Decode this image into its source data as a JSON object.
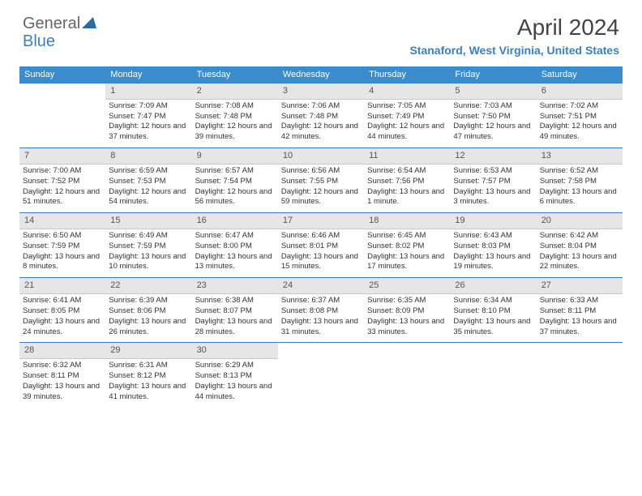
{
  "logo": {
    "part1": "General",
    "part2": "Blue"
  },
  "title": "April 2024",
  "subtitle": "Stanaford, West Virginia, United States",
  "colors": {
    "header_bg": "#3a8ccc",
    "accent": "#3a7fc4",
    "daynum_bg": "#e6e6e6",
    "text": "#333"
  },
  "weekdays": [
    "Sunday",
    "Monday",
    "Tuesday",
    "Wednesday",
    "Thursday",
    "Friday",
    "Saturday"
  ],
  "weeks": [
    {
      "days": [
        {
          "num": "",
          "sunrise": "",
          "sunset": "",
          "daylight": ""
        },
        {
          "num": "1",
          "sunrise": "Sunrise: 7:09 AM",
          "sunset": "Sunset: 7:47 PM",
          "daylight": "Daylight: 12 hours and 37 minutes."
        },
        {
          "num": "2",
          "sunrise": "Sunrise: 7:08 AM",
          "sunset": "Sunset: 7:48 PM",
          "daylight": "Daylight: 12 hours and 39 minutes."
        },
        {
          "num": "3",
          "sunrise": "Sunrise: 7:06 AM",
          "sunset": "Sunset: 7:48 PM",
          "daylight": "Daylight: 12 hours and 42 minutes."
        },
        {
          "num": "4",
          "sunrise": "Sunrise: 7:05 AM",
          "sunset": "Sunset: 7:49 PM",
          "daylight": "Daylight: 12 hours and 44 minutes."
        },
        {
          "num": "5",
          "sunrise": "Sunrise: 7:03 AM",
          "sunset": "Sunset: 7:50 PM",
          "daylight": "Daylight: 12 hours and 47 minutes."
        },
        {
          "num": "6",
          "sunrise": "Sunrise: 7:02 AM",
          "sunset": "Sunset: 7:51 PM",
          "daylight": "Daylight: 12 hours and 49 minutes."
        }
      ]
    },
    {
      "days": [
        {
          "num": "7",
          "sunrise": "Sunrise: 7:00 AM",
          "sunset": "Sunset: 7:52 PM",
          "daylight": "Daylight: 12 hours and 51 minutes."
        },
        {
          "num": "8",
          "sunrise": "Sunrise: 6:59 AM",
          "sunset": "Sunset: 7:53 PM",
          "daylight": "Daylight: 12 hours and 54 minutes."
        },
        {
          "num": "9",
          "sunrise": "Sunrise: 6:57 AM",
          "sunset": "Sunset: 7:54 PM",
          "daylight": "Daylight: 12 hours and 56 minutes."
        },
        {
          "num": "10",
          "sunrise": "Sunrise: 6:56 AM",
          "sunset": "Sunset: 7:55 PM",
          "daylight": "Daylight: 12 hours and 59 minutes."
        },
        {
          "num": "11",
          "sunrise": "Sunrise: 6:54 AM",
          "sunset": "Sunset: 7:56 PM",
          "daylight": "Daylight: 13 hours and 1 minute."
        },
        {
          "num": "12",
          "sunrise": "Sunrise: 6:53 AM",
          "sunset": "Sunset: 7:57 PM",
          "daylight": "Daylight: 13 hours and 3 minutes."
        },
        {
          "num": "13",
          "sunrise": "Sunrise: 6:52 AM",
          "sunset": "Sunset: 7:58 PM",
          "daylight": "Daylight: 13 hours and 6 minutes."
        }
      ]
    },
    {
      "days": [
        {
          "num": "14",
          "sunrise": "Sunrise: 6:50 AM",
          "sunset": "Sunset: 7:59 PM",
          "daylight": "Daylight: 13 hours and 8 minutes."
        },
        {
          "num": "15",
          "sunrise": "Sunrise: 6:49 AM",
          "sunset": "Sunset: 7:59 PM",
          "daylight": "Daylight: 13 hours and 10 minutes."
        },
        {
          "num": "16",
          "sunrise": "Sunrise: 6:47 AM",
          "sunset": "Sunset: 8:00 PM",
          "daylight": "Daylight: 13 hours and 13 minutes."
        },
        {
          "num": "17",
          "sunrise": "Sunrise: 6:46 AM",
          "sunset": "Sunset: 8:01 PM",
          "daylight": "Daylight: 13 hours and 15 minutes."
        },
        {
          "num": "18",
          "sunrise": "Sunrise: 6:45 AM",
          "sunset": "Sunset: 8:02 PM",
          "daylight": "Daylight: 13 hours and 17 minutes."
        },
        {
          "num": "19",
          "sunrise": "Sunrise: 6:43 AM",
          "sunset": "Sunset: 8:03 PM",
          "daylight": "Daylight: 13 hours and 19 minutes."
        },
        {
          "num": "20",
          "sunrise": "Sunrise: 6:42 AM",
          "sunset": "Sunset: 8:04 PM",
          "daylight": "Daylight: 13 hours and 22 minutes."
        }
      ]
    },
    {
      "days": [
        {
          "num": "21",
          "sunrise": "Sunrise: 6:41 AM",
          "sunset": "Sunset: 8:05 PM",
          "daylight": "Daylight: 13 hours and 24 minutes."
        },
        {
          "num": "22",
          "sunrise": "Sunrise: 6:39 AM",
          "sunset": "Sunset: 8:06 PM",
          "daylight": "Daylight: 13 hours and 26 minutes."
        },
        {
          "num": "23",
          "sunrise": "Sunrise: 6:38 AM",
          "sunset": "Sunset: 8:07 PM",
          "daylight": "Daylight: 13 hours and 28 minutes."
        },
        {
          "num": "24",
          "sunrise": "Sunrise: 6:37 AM",
          "sunset": "Sunset: 8:08 PM",
          "daylight": "Daylight: 13 hours and 31 minutes."
        },
        {
          "num": "25",
          "sunrise": "Sunrise: 6:35 AM",
          "sunset": "Sunset: 8:09 PM",
          "daylight": "Daylight: 13 hours and 33 minutes."
        },
        {
          "num": "26",
          "sunrise": "Sunrise: 6:34 AM",
          "sunset": "Sunset: 8:10 PM",
          "daylight": "Daylight: 13 hours and 35 minutes."
        },
        {
          "num": "27",
          "sunrise": "Sunrise: 6:33 AM",
          "sunset": "Sunset: 8:11 PM",
          "daylight": "Daylight: 13 hours and 37 minutes."
        }
      ]
    },
    {
      "days": [
        {
          "num": "28",
          "sunrise": "Sunrise: 6:32 AM",
          "sunset": "Sunset: 8:11 PM",
          "daylight": "Daylight: 13 hours and 39 minutes."
        },
        {
          "num": "29",
          "sunrise": "Sunrise: 6:31 AM",
          "sunset": "Sunset: 8:12 PM",
          "daylight": "Daylight: 13 hours and 41 minutes."
        },
        {
          "num": "30",
          "sunrise": "Sunrise: 6:29 AM",
          "sunset": "Sunset: 8:13 PM",
          "daylight": "Daylight: 13 hours and 44 minutes."
        },
        {
          "num": "",
          "sunrise": "",
          "sunset": "",
          "daylight": ""
        },
        {
          "num": "",
          "sunrise": "",
          "sunset": "",
          "daylight": ""
        },
        {
          "num": "",
          "sunrise": "",
          "sunset": "",
          "daylight": ""
        },
        {
          "num": "",
          "sunrise": "",
          "sunset": "",
          "daylight": ""
        }
      ]
    }
  ]
}
